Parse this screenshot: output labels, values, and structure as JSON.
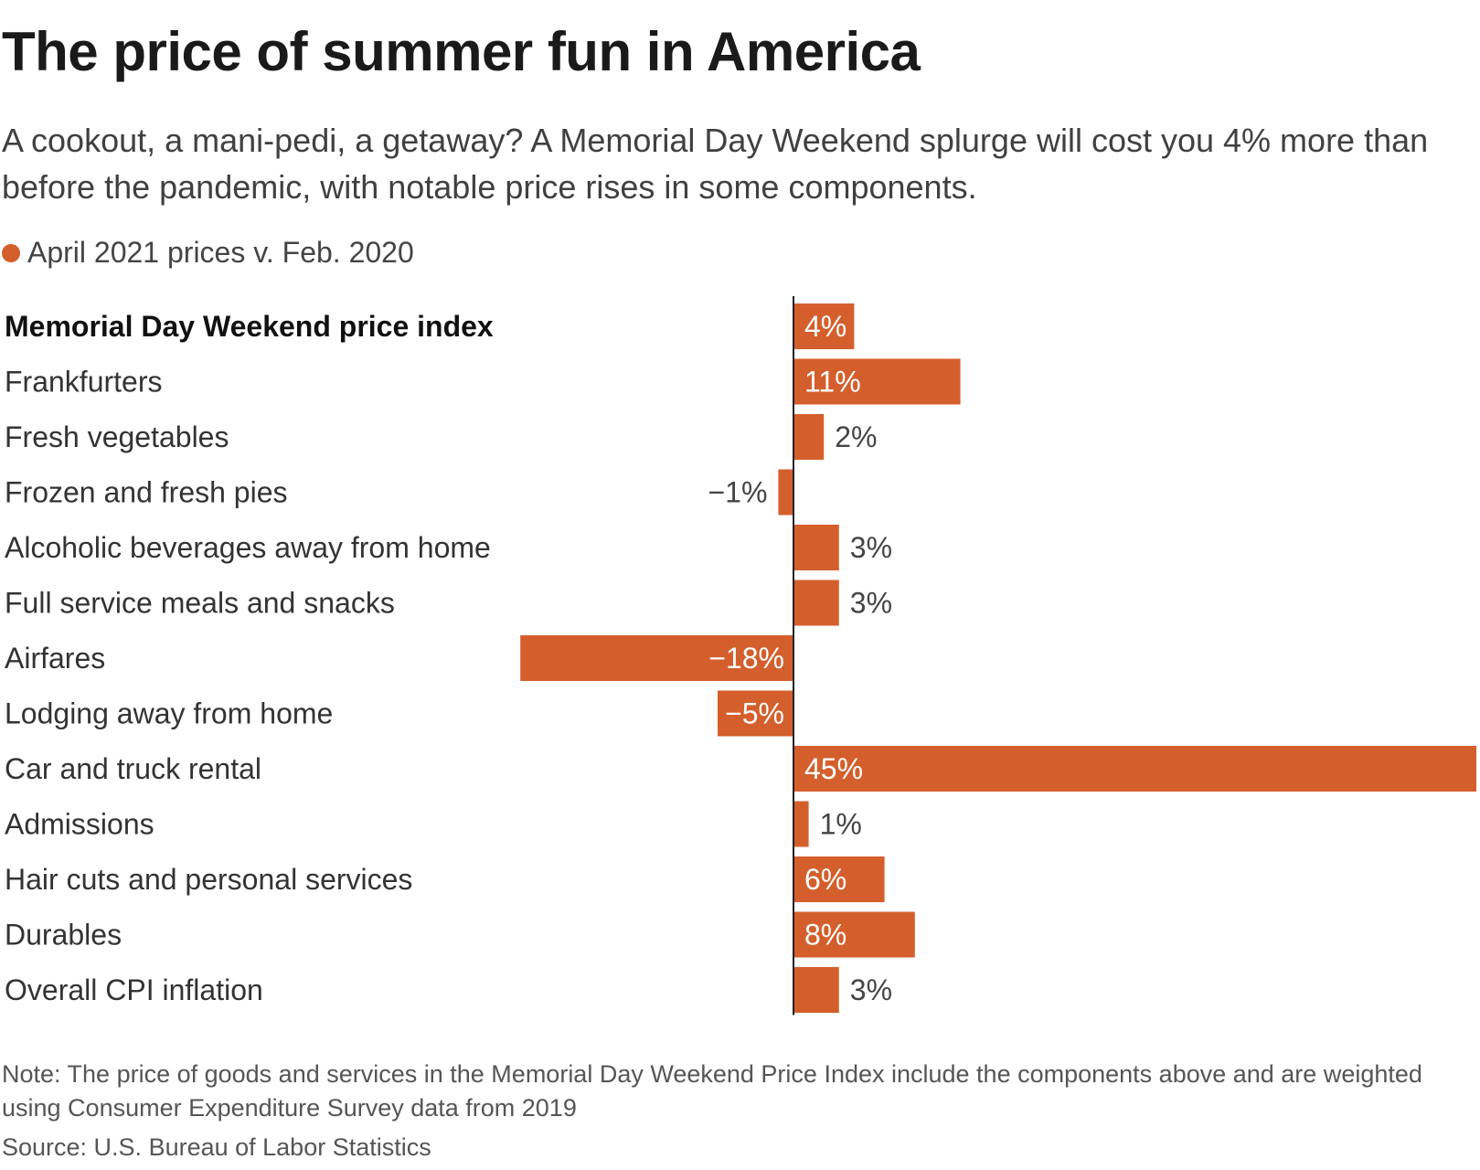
{
  "title": "The price of summer fun in America",
  "subtitle": "A cookout, a mani-pedi, a getaway? A Memorial Day Weekend splurge will cost you 4% more than before the pandemic, with notable price rises in some components.",
  "legend": {
    "label": "April 2021 prices v. Feb. 2020",
    "color": "#d45f2c"
  },
  "chart_data": {
    "type": "bar",
    "orientation": "horizontal",
    "title": "The price of summer fun in America",
    "xlabel": "",
    "ylabel": "",
    "unit": "%",
    "xlim": [
      -18,
      45
    ],
    "grid": false,
    "legend": "top-left",
    "series": [
      {
        "name": "April 2021 prices v. Feb. 2020",
        "color": "#d45f2c",
        "values": [
          4,
          11,
          2,
          -1,
          3,
          3,
          -18,
          -5,
          45,
          1,
          6,
          8,
          3
        ]
      }
    ],
    "categories": [
      "Memorial Day Weekend price index",
      "Frankfurters",
      "Fresh vegetables",
      "Frozen and fresh pies",
      "Alcoholic beverages away from home",
      "Full service meals and snacks",
      "Airfares",
      "Lodging away from home",
      "Car and truck rental",
      "Admissions",
      "Hair cuts and personal services",
      "Durables",
      "Overall CPI inflation"
    ],
    "value_labels": [
      "4%",
      "11%",
      "2%",
      "−1%",
      "3%",
      "3%",
      "−18%",
      "−5%",
      "45%",
      "1%",
      "6%",
      "8%",
      "3%"
    ],
    "bold_categories": [
      "Memorial Day Weekend price index"
    ]
  },
  "note": "Note: The price of goods and services in the Memorial Day Weekend Price Index include the components above and are weighted using Consumer Expenditure Survey data from 2019",
  "source": "Source: U.S. Bureau of Labor Statistics"
}
